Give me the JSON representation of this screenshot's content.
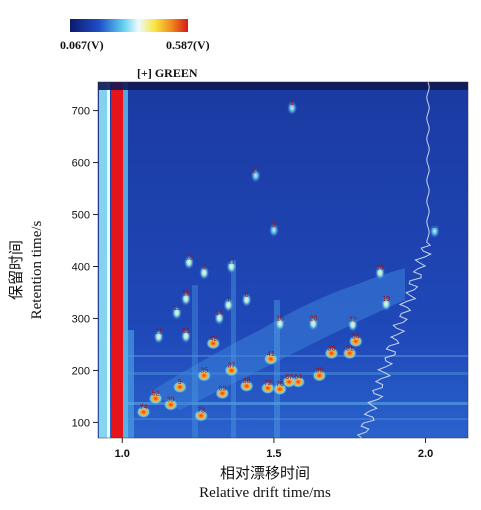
{
  "colorbar": {
    "min_label": "0.067(V)",
    "max_label": "0.587(V)",
    "colors": [
      "#0a1a6e",
      "#1f4fc8",
      "#5fd0f0",
      "#eefaff",
      "#f7e640",
      "#f08a1c",
      "#d81818"
    ]
  },
  "plot_title": "[+] GREEN",
  "ylabel": {
    "cn": "保留时间",
    "en": "Retention time/s"
  },
  "xlabel": {
    "cn": "相对漂移时间",
    "en": "Relative drift time/ms"
  },
  "chart_data": {
    "type": "heatmap",
    "xlim": [
      0.92,
      2.14
    ],
    "ylim": [
      70,
      755
    ],
    "x_ticks": [
      "1.0",
      "1.5",
      "2.0"
    ],
    "y_ticks": [
      "100",
      "200",
      "300",
      "400",
      "500",
      "600",
      "700"
    ],
    "background_color": "#1a3ca8",
    "reaction_ion_peak_x": 1.0,
    "spot_labels": [
      {
        "text": "1",
        "x": 1.56,
        "y": 705
      },
      {
        "text": "17",
        "x": 1.44,
        "y": 575
      },
      {
        "text": "3",
        "x": 1.5,
        "y": 470
      },
      {
        "text": "8",
        "x": 2.03,
        "y": 468
      },
      {
        "text": "13",
        "x": 1.22,
        "y": 408
      },
      {
        "text": "11",
        "x": 1.36,
        "y": 400
      },
      {
        "text": "4",
        "x": 1.27,
        "y": 388
      },
      {
        "text": "18",
        "x": 1.85,
        "y": 388
      },
      {
        "text": "15",
        "x": 1.21,
        "y": 338
      },
      {
        "text": "6",
        "x": 1.41,
        "y": 336
      },
      {
        "text": "7",
        "x": 1.35,
        "y": 326
      },
      {
        "text": "19",
        "x": 1.18,
        "y": 311
      },
      {
        "text": "14",
        "x": 1.32,
        "y": 301
      },
      {
        "text": "19",
        "x": 1.87,
        "y": 328
      },
      {
        "text": "16",
        "x": 1.52,
        "y": 290
      },
      {
        "text": "20",
        "x": 1.63,
        "y": 290
      },
      {
        "text": "32",
        "x": 1.76,
        "y": 288
      },
      {
        "text": "21",
        "x": 1.12,
        "y": 265
      },
      {
        "text": "61",
        "x": 1.21,
        "y": 266
      },
      {
        "text": "42",
        "x": 1.3,
        "y": 252
      },
      {
        "text": "30",
        "x": 1.69,
        "y": 233
      },
      {
        "text": "31",
        "x": 1.75,
        "y": 233
      },
      {
        "text": "34",
        "x": 1.77,
        "y": 256
      },
      {
        "text": "41",
        "x": 1.49,
        "y": 222
      },
      {
        "text": "37",
        "x": 1.36,
        "y": 200
      },
      {
        "text": "35",
        "x": 1.27,
        "y": 190
      },
      {
        "text": "36",
        "x": 1.65,
        "y": 190
      },
      {
        "text": "64",
        "x": 1.58,
        "y": 178
      },
      {
        "text": "38",
        "x": 1.41,
        "y": 170
      },
      {
        "text": "72",
        "x": 1.48,
        "y": 166
      },
      {
        "text": "70",
        "x": 1.52,
        "y": 164
      },
      {
        "text": "67",
        "x": 1.55,
        "y": 178
      },
      {
        "text": "69",
        "x": 1.33,
        "y": 156
      },
      {
        "text": "52",
        "x": 1.11,
        "y": 146
      },
      {
        "text": "9",
        "x": 1.19,
        "y": 168
      },
      {
        "text": "39",
        "x": 1.16,
        "y": 134
      },
      {
        "text": "74",
        "x": 1.07,
        "y": 120
      },
      {
        "text": "73",
        "x": 1.26,
        "y": 113
      }
    ]
  }
}
